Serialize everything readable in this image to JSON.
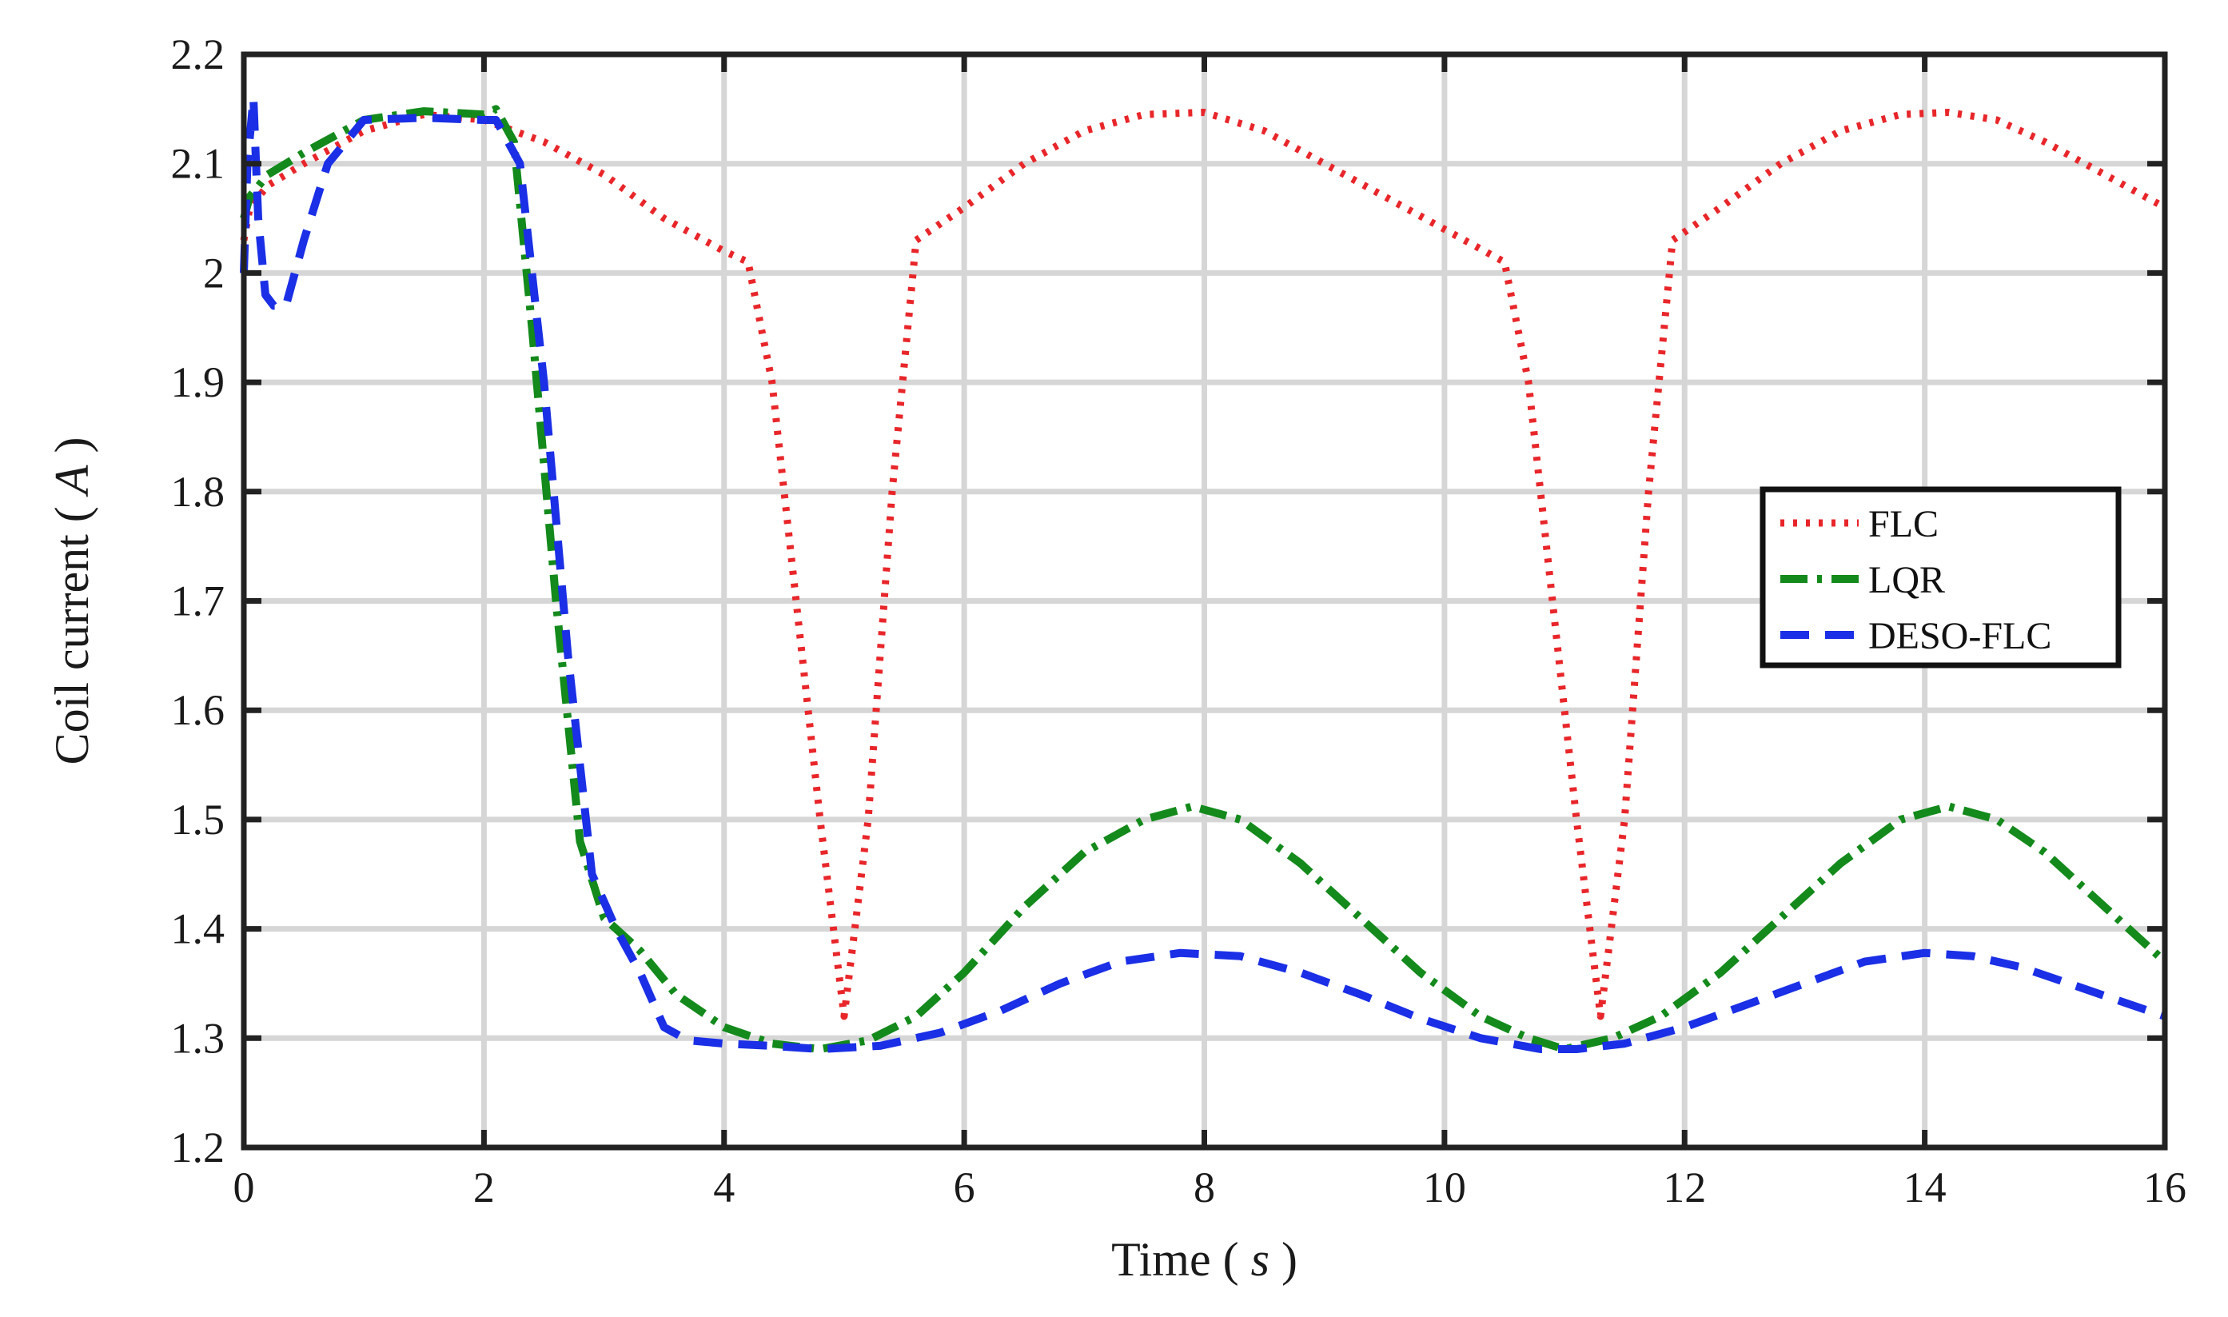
{
  "chart_data": {
    "type": "line",
    "title": "",
    "xlabel": "Time",
    "xlabel_unit": "s",
    "ylabel": "Coil current",
    "ylabel_unit": "A",
    "xlim": [
      0,
      16
    ],
    "ylim": [
      1.2,
      2.2
    ],
    "xticks": [
      0,
      2,
      4,
      6,
      8,
      10,
      12,
      14,
      16
    ],
    "xtick_labels": [
      "0",
      "2",
      "4",
      "6",
      "8",
      "10",
      "12",
      "14",
      "16"
    ],
    "yticks": [
      1.2,
      1.3,
      1.4,
      1.5,
      1.6,
      1.7,
      1.8,
      1.9,
      2.0,
      2.1,
      2.2
    ],
    "ytick_labels": [
      "1.2",
      "1.3",
      "1.4",
      "1.5",
      "1.6",
      "1.7",
      "1.8",
      "1.9",
      "2",
      "2.1",
      "2.2"
    ],
    "grid": true,
    "legend_position": "right",
    "series": [
      {
        "name": "FLC",
        "color": "#e8262a",
        "style": "dotted",
        "x": [
          0,
          0.05,
          0.2,
          0.5,
          1.0,
          1.5,
          2.0,
          2.5,
          3.0,
          3.5,
          4.0,
          4.2,
          4.4,
          4.6,
          4.8,
          5.0,
          5.2,
          5.4,
          5.6,
          6.0,
          6.5,
          7.0,
          7.5,
          8.0,
          8.5,
          9.0,
          9.5,
          10.0,
          10.5,
          10.7,
          10.9,
          11.1,
          11.3,
          11.5,
          11.7,
          11.9,
          12.3,
          12.8,
          13.3,
          13.8,
          14.2,
          14.6,
          15.0,
          15.5,
          16.0
        ],
        "y": [
          2.03,
          2.06,
          2.08,
          2.1,
          2.13,
          2.145,
          2.14,
          2.12,
          2.09,
          2.05,
          2.02,
          2.01,
          1.9,
          1.7,
          1.5,
          1.32,
          1.5,
          1.8,
          2.03,
          2.06,
          2.1,
          2.13,
          2.145,
          2.147,
          2.13,
          2.1,
          2.07,
          2.04,
          2.01,
          1.9,
          1.7,
          1.5,
          1.32,
          1.5,
          1.8,
          2.03,
          2.06,
          2.1,
          2.13,
          2.145,
          2.147,
          2.14,
          2.12,
          2.09,
          2.06
        ]
      },
      {
        "name": "LQR",
        "color": "#138a1b",
        "style": "dash-dot",
        "x": [
          0,
          0.05,
          0.2,
          0.5,
          1.0,
          1.5,
          2.0,
          2.1,
          2.25,
          2.4,
          2.6,
          2.8,
          3.0,
          3.3,
          3.6,
          4.0,
          4.4,
          4.8,
          5.2,
          5.6,
          6.0,
          6.5,
          7.0,
          7.5,
          7.9,
          8.3,
          8.8,
          9.3,
          9.8,
          10.3,
          10.7,
          11.0,
          11.4,
          11.8,
          12.3,
          12.8,
          13.3,
          13.8,
          14.2,
          14.6,
          15.0,
          15.5,
          16.0
        ],
        "y": [
          2.05,
          2.07,
          2.09,
          2.11,
          2.14,
          2.148,
          2.145,
          2.15,
          2.12,
          1.95,
          1.7,
          1.48,
          1.41,
          1.38,
          1.34,
          1.31,
          1.295,
          1.29,
          1.298,
          1.32,
          1.36,
          1.42,
          1.47,
          1.5,
          1.512,
          1.5,
          1.46,
          1.41,
          1.36,
          1.32,
          1.3,
          1.29,
          1.3,
          1.32,
          1.36,
          1.41,
          1.46,
          1.5,
          1.512,
          1.5,
          1.47,
          1.42,
          1.37
        ]
      },
      {
        "name": "DESO-FLC",
        "color": "#1a2fe6",
        "style": "dashed",
        "x": [
          0,
          0.03,
          0.08,
          0.12,
          0.18,
          0.25,
          0.35,
          0.5,
          0.7,
          1.0,
          1.5,
          2.0,
          2.1,
          2.3,
          2.5,
          2.7,
          2.9,
          3.1,
          3.3,
          3.5,
          3.7,
          4.0,
          4.4,
          4.8,
          5.3,
          5.8,
          6.3,
          6.8,
          7.3,
          7.8,
          8.3,
          8.8,
          9.3,
          9.8,
          10.3,
          10.8,
          11.1,
          11.5,
          12.0,
          12.5,
          13.0,
          13.5,
          14.0,
          14.4,
          14.8,
          15.2,
          15.6,
          16.0
        ],
        "y": [
          2.0,
          2.1,
          2.16,
          2.05,
          1.98,
          1.97,
          1.97,
          2.03,
          2.1,
          2.14,
          2.142,
          2.14,
          2.14,
          2.1,
          1.9,
          1.65,
          1.45,
          1.4,
          1.36,
          1.31,
          1.298,
          1.295,
          1.293,
          1.29,
          1.293,
          1.305,
          1.325,
          1.35,
          1.37,
          1.378,
          1.375,
          1.36,
          1.34,
          1.318,
          1.3,
          1.29,
          1.29,
          1.295,
          1.31,
          1.33,
          1.35,
          1.37,
          1.378,
          1.375,
          1.365,
          1.35,
          1.335,
          1.32
        ]
      }
    ]
  }
}
